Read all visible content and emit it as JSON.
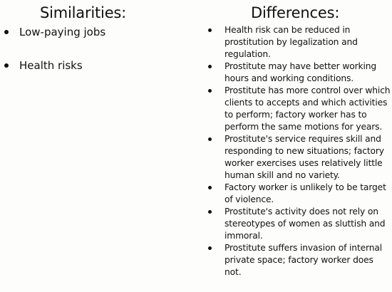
{
  "headings": {
    "similarities": "Similarities:",
    "differences": "Differences:"
  },
  "similarities": [
    "Low-paying jobs",
    "Health risks"
  ],
  "differences": [
    "Health risk can be reduced in prostitution by legalization and regulation.",
    "Prostitute may have better working hours and working conditions.",
    "Prostitute has more control over which clients to accepts and which activities to perform; factory worker has to perform the same motions for years.",
    "Prostitute's service requires skill and responding to new situations; factory worker exercises uses relatively little human skill and no variety.",
    "Factory worker is unlikely to be target of violence.",
    "Prostitute's activity does not rely on stereotypes of women as sluttish and immoral.",
    "Prostitute suffers invasion of internal private space; factory worker does not."
  ]
}
